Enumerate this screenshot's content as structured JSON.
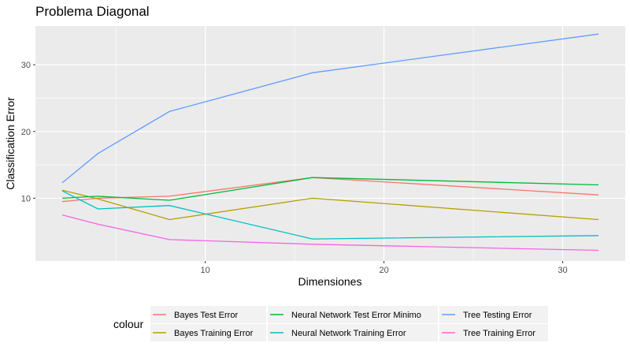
{
  "chart_data": {
    "type": "line",
    "title": "Problema Diagonal",
    "xlabel": "Dimensiones",
    "ylabel": "Classification Error",
    "xlim": [
      0.5,
      33.5
    ],
    "ylim": [
      0.6,
      35.8
    ],
    "x_ticks": [
      10,
      20,
      30
    ],
    "y_ticks": [
      10,
      20,
      30
    ],
    "grid": true,
    "legend": {
      "title": "colour",
      "position": "bottom"
    },
    "x": [
      2,
      4,
      8,
      16,
      32
    ],
    "series": [
      {
        "name": "Bayes Test Error",
        "color": "#F8766D",
        "values": [
          9.5,
          10.0,
          10.3,
          13.1,
          10.5
        ]
      },
      {
        "name": "Bayes Training Error",
        "color": "#B79F00",
        "values": [
          11.2,
          9.9,
          6.8,
          10.0,
          6.8
        ]
      },
      {
        "name": "Neural Network Test Error Minimo",
        "color": "#00BA38",
        "values": [
          10.0,
          10.3,
          9.7,
          13.1,
          12.0
        ]
      },
      {
        "name": "Neural Network Training Error",
        "color": "#00BFC4",
        "values": [
          11.1,
          8.4,
          8.9,
          3.9,
          4.4
        ]
      },
      {
        "name": "Tree Testing Error",
        "color": "#619CFF",
        "values": [
          12.3,
          16.7,
          23.0,
          28.8,
          34.6
        ]
      },
      {
        "name": "Tree Training Error",
        "color": "#F564E3",
        "values": [
          7.5,
          6.1,
          3.8,
          3.1,
          2.2
        ]
      }
    ]
  }
}
